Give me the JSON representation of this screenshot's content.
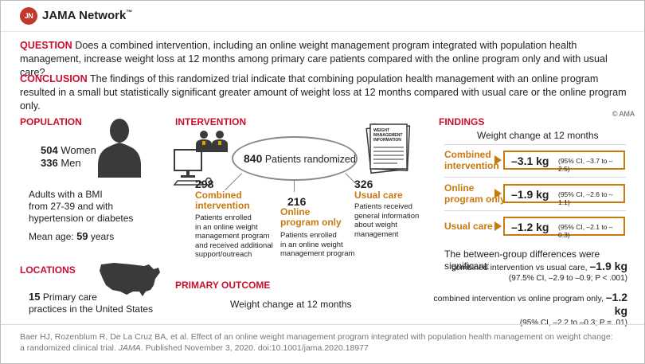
{
  "header": {
    "logo_mark": "JN",
    "logo_text": "JAMA Network",
    "trademark": "™"
  },
  "question": {
    "label": "QUESTION",
    "text": "Does a combined intervention, including an online weight management program integrated with population health management, increase weight loss at 12 months among primary care patients compared with the online program only and with usual care?"
  },
  "conclusion": {
    "label": "CONCLUSION",
    "text": "The findings of this randomized trial indicate that combining population health management with an online program resulted in a small but statistically significant greater amount of weight loss at 12 months compared with usual care or the online program only."
  },
  "copyright": "© AMA",
  "population": {
    "title": "POPULATION",
    "women_count": "504",
    "women_label": "Women",
    "men_count": "336",
    "men_label": "Men",
    "criteria_line1": "Adults with a BMI",
    "criteria_line2": "from 27-39 and with",
    "criteria_line3": "hypertension or diabetes",
    "mean_age_label": "Mean age:",
    "mean_age_value": "59",
    "mean_age_unit": "years"
  },
  "locations": {
    "title": "LOCATIONS",
    "count": "15",
    "line1": "Primary care",
    "line2": "practices in the United States"
  },
  "intervention": {
    "title": "INTERVENTION",
    "randomized_count": "840",
    "randomized_label": "Patients randomized",
    "doc_label_line1": "WEIGHT",
    "doc_label_line2": "MANAGEMENT",
    "doc_label_line3": "INFORMATION",
    "arms": [
      {
        "count": "298",
        "name_line1": "Combined",
        "name_line2": "intervention",
        "desc": [
          "Patients enrolled",
          "in an online weight",
          "management program",
          "and received additional",
          "support/outreach"
        ]
      },
      {
        "count": "216",
        "name_line1": "Online",
        "name_line2": "program only",
        "desc": [
          "Patients enrolled",
          "in an online weight",
          "management program"
        ]
      },
      {
        "count": "326",
        "name_line1": "Usual care",
        "name_line2": "",
        "desc": [
          "Patients received",
          "general information",
          "about weight",
          "management"
        ]
      }
    ]
  },
  "primary_outcome": {
    "title": "PRIMARY OUTCOME",
    "text": "Weight change at 12 months"
  },
  "findings": {
    "title": "FINDINGS",
    "subtitle": "Weight change at 12 months",
    "rows": [
      {
        "label_line1": "Combined",
        "label_line2": "intervention",
        "value": "–3.1 kg",
        "ci": "(95% CI, –3.7 to –2.5)"
      },
      {
        "label_line1": "Online",
        "label_line2": "program only",
        "value": "–1.9 kg",
        "ci": "(95% CI, –2.6 to –1.1)"
      },
      {
        "label_line1": "Usual care",
        "label_line2": "",
        "value": "–1.2 kg",
        "ci": "(95% CI, –2.1 to –0.3)"
      }
    ],
    "between_title": "The between-group differences were significant:",
    "comparisons": [
      {
        "label": "combined intervention vs usual care,",
        "value": "–1.9 kg",
        "ci": "(97.5% CI, –2.9 to –0.9; P < .001)"
      },
      {
        "label": "combined intervention vs online program only,",
        "value": "–1.2 kg",
        "ci": "(95% CI, –2.2 to –0.3; P = .01)"
      }
    ]
  },
  "citation": {
    "line1": "Baer HJ, Rozenblum R, De La Cruz BA, et al. Effect of an online weight management program integrated with population health management on weight change:",
    "line2_pre": "a randomized clinical trial.",
    "journal": "JAMA",
    "line2_post": ". Published November 3, 2020. doi:10.1001/jama.2020.18977"
  },
  "colors": {
    "accent_red": "#c8102e",
    "accent_orange": "#c97a0f",
    "icon_gray": "#3a3a3a"
  }
}
